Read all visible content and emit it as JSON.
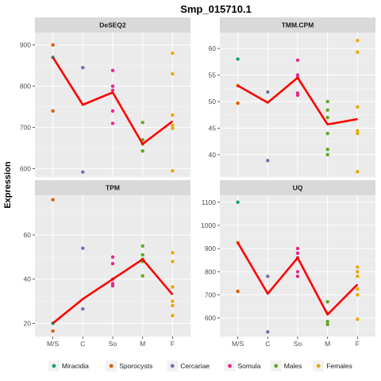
{
  "chart_data": {
    "type": "scatter",
    "title": "Smp_015710.1",
    "ylabel": "Expression",
    "xlabel": "",
    "categories": [
      "M/S",
      "C",
      "So",
      "M",
      "F"
    ],
    "legend": {
      "position": "bottom",
      "entries": [
        {
          "name": "Miracidia",
          "color": "#1b9e77"
        },
        {
          "name": "Sporocysts",
          "color": "#d95f02"
        },
        {
          "name": "Cercariae",
          "color": "#7570b3"
        },
        {
          "name": "Somula",
          "color": "#e7298a"
        },
        {
          "name": "Males",
          "color": "#66a61e"
        },
        {
          "name": "Females",
          "color": "#e6ab02"
        }
      ]
    },
    "grid": true,
    "line_color": "#ff0000",
    "panels": [
      {
        "name": "DeSEQ2",
        "ylim": [
          580,
          930
        ],
        "yticks": [
          600,
          700,
          800,
          900
        ],
        "mean": [
          870,
          755,
          785,
          660,
          715
        ],
        "points": [
          {
            "group": "Miracidia",
            "x": "M/S",
            "y": 870
          },
          {
            "group": "Sporocysts",
            "x": "M/S",
            "y": 900
          },
          {
            "group": "Sporocysts",
            "x": "M/S",
            "y": 740
          },
          {
            "group": "Cercariae",
            "x": "C",
            "y": 845
          },
          {
            "group": "Cercariae",
            "x": "C",
            "y": 592
          },
          {
            "group": "Somula",
            "x": "So",
            "y": 838
          },
          {
            "group": "Somula",
            "x": "So",
            "y": 800
          },
          {
            "group": "Somula",
            "x": "So",
            "y": 790
          },
          {
            "group": "Somula",
            "x": "So",
            "y": 740
          },
          {
            "group": "Somula",
            "x": "So",
            "y": 710
          },
          {
            "group": "Males",
            "x": "M",
            "y": 712
          },
          {
            "group": "Males",
            "x": "M",
            "y": 670
          },
          {
            "group": "Males",
            "x": "M",
            "y": 660
          },
          {
            "group": "Males",
            "x": "M",
            "y": 643
          },
          {
            "group": "Females",
            "x": "F",
            "y": 880
          },
          {
            "group": "Females",
            "x": "F",
            "y": 830
          },
          {
            "group": "Females",
            "x": "F",
            "y": 730
          },
          {
            "group": "Females",
            "x": "F",
            "y": 705
          },
          {
            "group": "Females",
            "x": "F",
            "y": 698
          },
          {
            "group": "Females",
            "x": "F",
            "y": 595
          }
        ]
      },
      {
        "name": "TMM.CPM",
        "ylim": [
          35.8,
          63
        ],
        "yticks": [
          40,
          45,
          50,
          55,
          60
        ],
        "mean": [
          53,
          49.8,
          54.5,
          45.7,
          46.7
        ],
        "points": [
          {
            "group": "Miracidia",
            "x": "M/S",
            "y": 58
          },
          {
            "group": "Sporocysts",
            "x": "M/S",
            "y": 53
          },
          {
            "group": "Sporocysts",
            "x": "M/S",
            "y": 49.7
          },
          {
            "group": "Cercariae",
            "x": "C",
            "y": 51.8
          },
          {
            "group": "Cercariae",
            "x": "C",
            "y": 38.9
          },
          {
            "group": "Somula",
            "x": "So",
            "y": 57.8
          },
          {
            "group": "Somula",
            "x": "So",
            "y": 55
          },
          {
            "group": "Somula",
            "x": "So",
            "y": 54.5
          },
          {
            "group": "Somula",
            "x": "So",
            "y": 51.6
          },
          {
            "group": "Somula",
            "x": "So",
            "y": 51.2
          },
          {
            "group": "Males",
            "x": "M",
            "y": 50
          },
          {
            "group": "Males",
            "x": "M",
            "y": 48.4
          },
          {
            "group": "Males",
            "x": "M",
            "y": 47
          },
          {
            "group": "Males",
            "x": "M",
            "y": 44
          },
          {
            "group": "Males",
            "x": "M",
            "y": 41
          },
          {
            "group": "Males",
            "x": "M",
            "y": 40
          },
          {
            "group": "Females",
            "x": "F",
            "y": 61.5
          },
          {
            "group": "Females",
            "x": "F",
            "y": 59.3
          },
          {
            "group": "Females",
            "x": "F",
            "y": 49
          },
          {
            "group": "Females",
            "x": "F",
            "y": 44.5
          },
          {
            "group": "Females",
            "x": "F",
            "y": 44
          },
          {
            "group": "Females",
            "x": "F",
            "y": 36.8
          }
        ]
      },
      {
        "name": "TPM",
        "ylim": [
          14,
          78
        ],
        "yticks": [
          20,
          40,
          60
        ],
        "mean": [
          20,
          31,
          40,
          49,
          33
        ],
        "points": [
          {
            "group": "Miracidia",
            "x": "M/S",
            "y": 20
          },
          {
            "group": "Sporocysts",
            "x": "M/S",
            "y": 76
          },
          {
            "group": "Sporocysts",
            "x": "M/S",
            "y": 16.5
          },
          {
            "group": "Cercariae",
            "x": "C",
            "y": 54
          },
          {
            "group": "Cercariae",
            "x": "C",
            "y": 26.5
          },
          {
            "group": "Somula",
            "x": "So",
            "y": 50
          },
          {
            "group": "Somula",
            "x": "So",
            "y": 47
          },
          {
            "group": "Somula",
            "x": "So",
            "y": 40
          },
          {
            "group": "Somula",
            "x": "So",
            "y": 38
          },
          {
            "group": "Somula",
            "x": "So",
            "y": 37
          },
          {
            "group": "Males",
            "x": "M",
            "y": 55
          },
          {
            "group": "Males",
            "x": "M",
            "y": 51
          },
          {
            "group": "Males",
            "x": "M",
            "y": 49
          },
          {
            "group": "Males",
            "x": "M",
            "y": 48
          },
          {
            "group": "Males",
            "x": "M",
            "y": 41.5
          },
          {
            "group": "Females",
            "x": "F",
            "y": 52
          },
          {
            "group": "Females",
            "x": "F",
            "y": 48
          },
          {
            "group": "Females",
            "x": "F",
            "y": 36.5
          },
          {
            "group": "Females",
            "x": "F",
            "y": 30
          },
          {
            "group": "Females",
            "x": "F",
            "y": 28
          },
          {
            "group": "Females",
            "x": "F",
            "y": 23.5
          }
        ]
      },
      {
        "name": "UQ",
        "ylim": [
          520,
          1130
        ],
        "yticks": [
          600,
          700,
          800,
          900,
          1000,
          1100
        ],
        "mean": [
          925,
          705,
          860,
          615,
          745
        ],
        "points": [
          {
            "group": "Miracidia",
            "x": "M/S",
            "y": 1100
          },
          {
            "group": "Sporocysts",
            "x": "M/S",
            "y": 925
          },
          {
            "group": "Sporocysts",
            "x": "M/S",
            "y": 715
          },
          {
            "group": "Cercariae",
            "x": "C",
            "y": 780
          },
          {
            "group": "Cercariae",
            "x": "C",
            "y": 540
          },
          {
            "group": "Somula",
            "x": "So",
            "y": 900
          },
          {
            "group": "Somula",
            "x": "So",
            "y": 880
          },
          {
            "group": "Somula",
            "x": "So",
            "y": 860
          },
          {
            "group": "Somula",
            "x": "So",
            "y": 800
          },
          {
            "group": "Somula",
            "x": "So",
            "y": 780
          },
          {
            "group": "Males",
            "x": "M",
            "y": 670
          },
          {
            "group": "Males",
            "x": "M",
            "y": 620
          },
          {
            "group": "Males",
            "x": "M",
            "y": 585
          },
          {
            "group": "Males",
            "x": "M",
            "y": 572
          },
          {
            "group": "Females",
            "x": "F",
            "y": 820
          },
          {
            "group": "Females",
            "x": "F",
            "y": 800
          },
          {
            "group": "Females",
            "x": "F",
            "y": 780
          },
          {
            "group": "Females",
            "x": "F",
            "y": 725
          },
          {
            "group": "Females",
            "x": "F",
            "y": 700
          },
          {
            "group": "Females",
            "x": "F",
            "y": 595
          }
        ]
      }
    ]
  }
}
